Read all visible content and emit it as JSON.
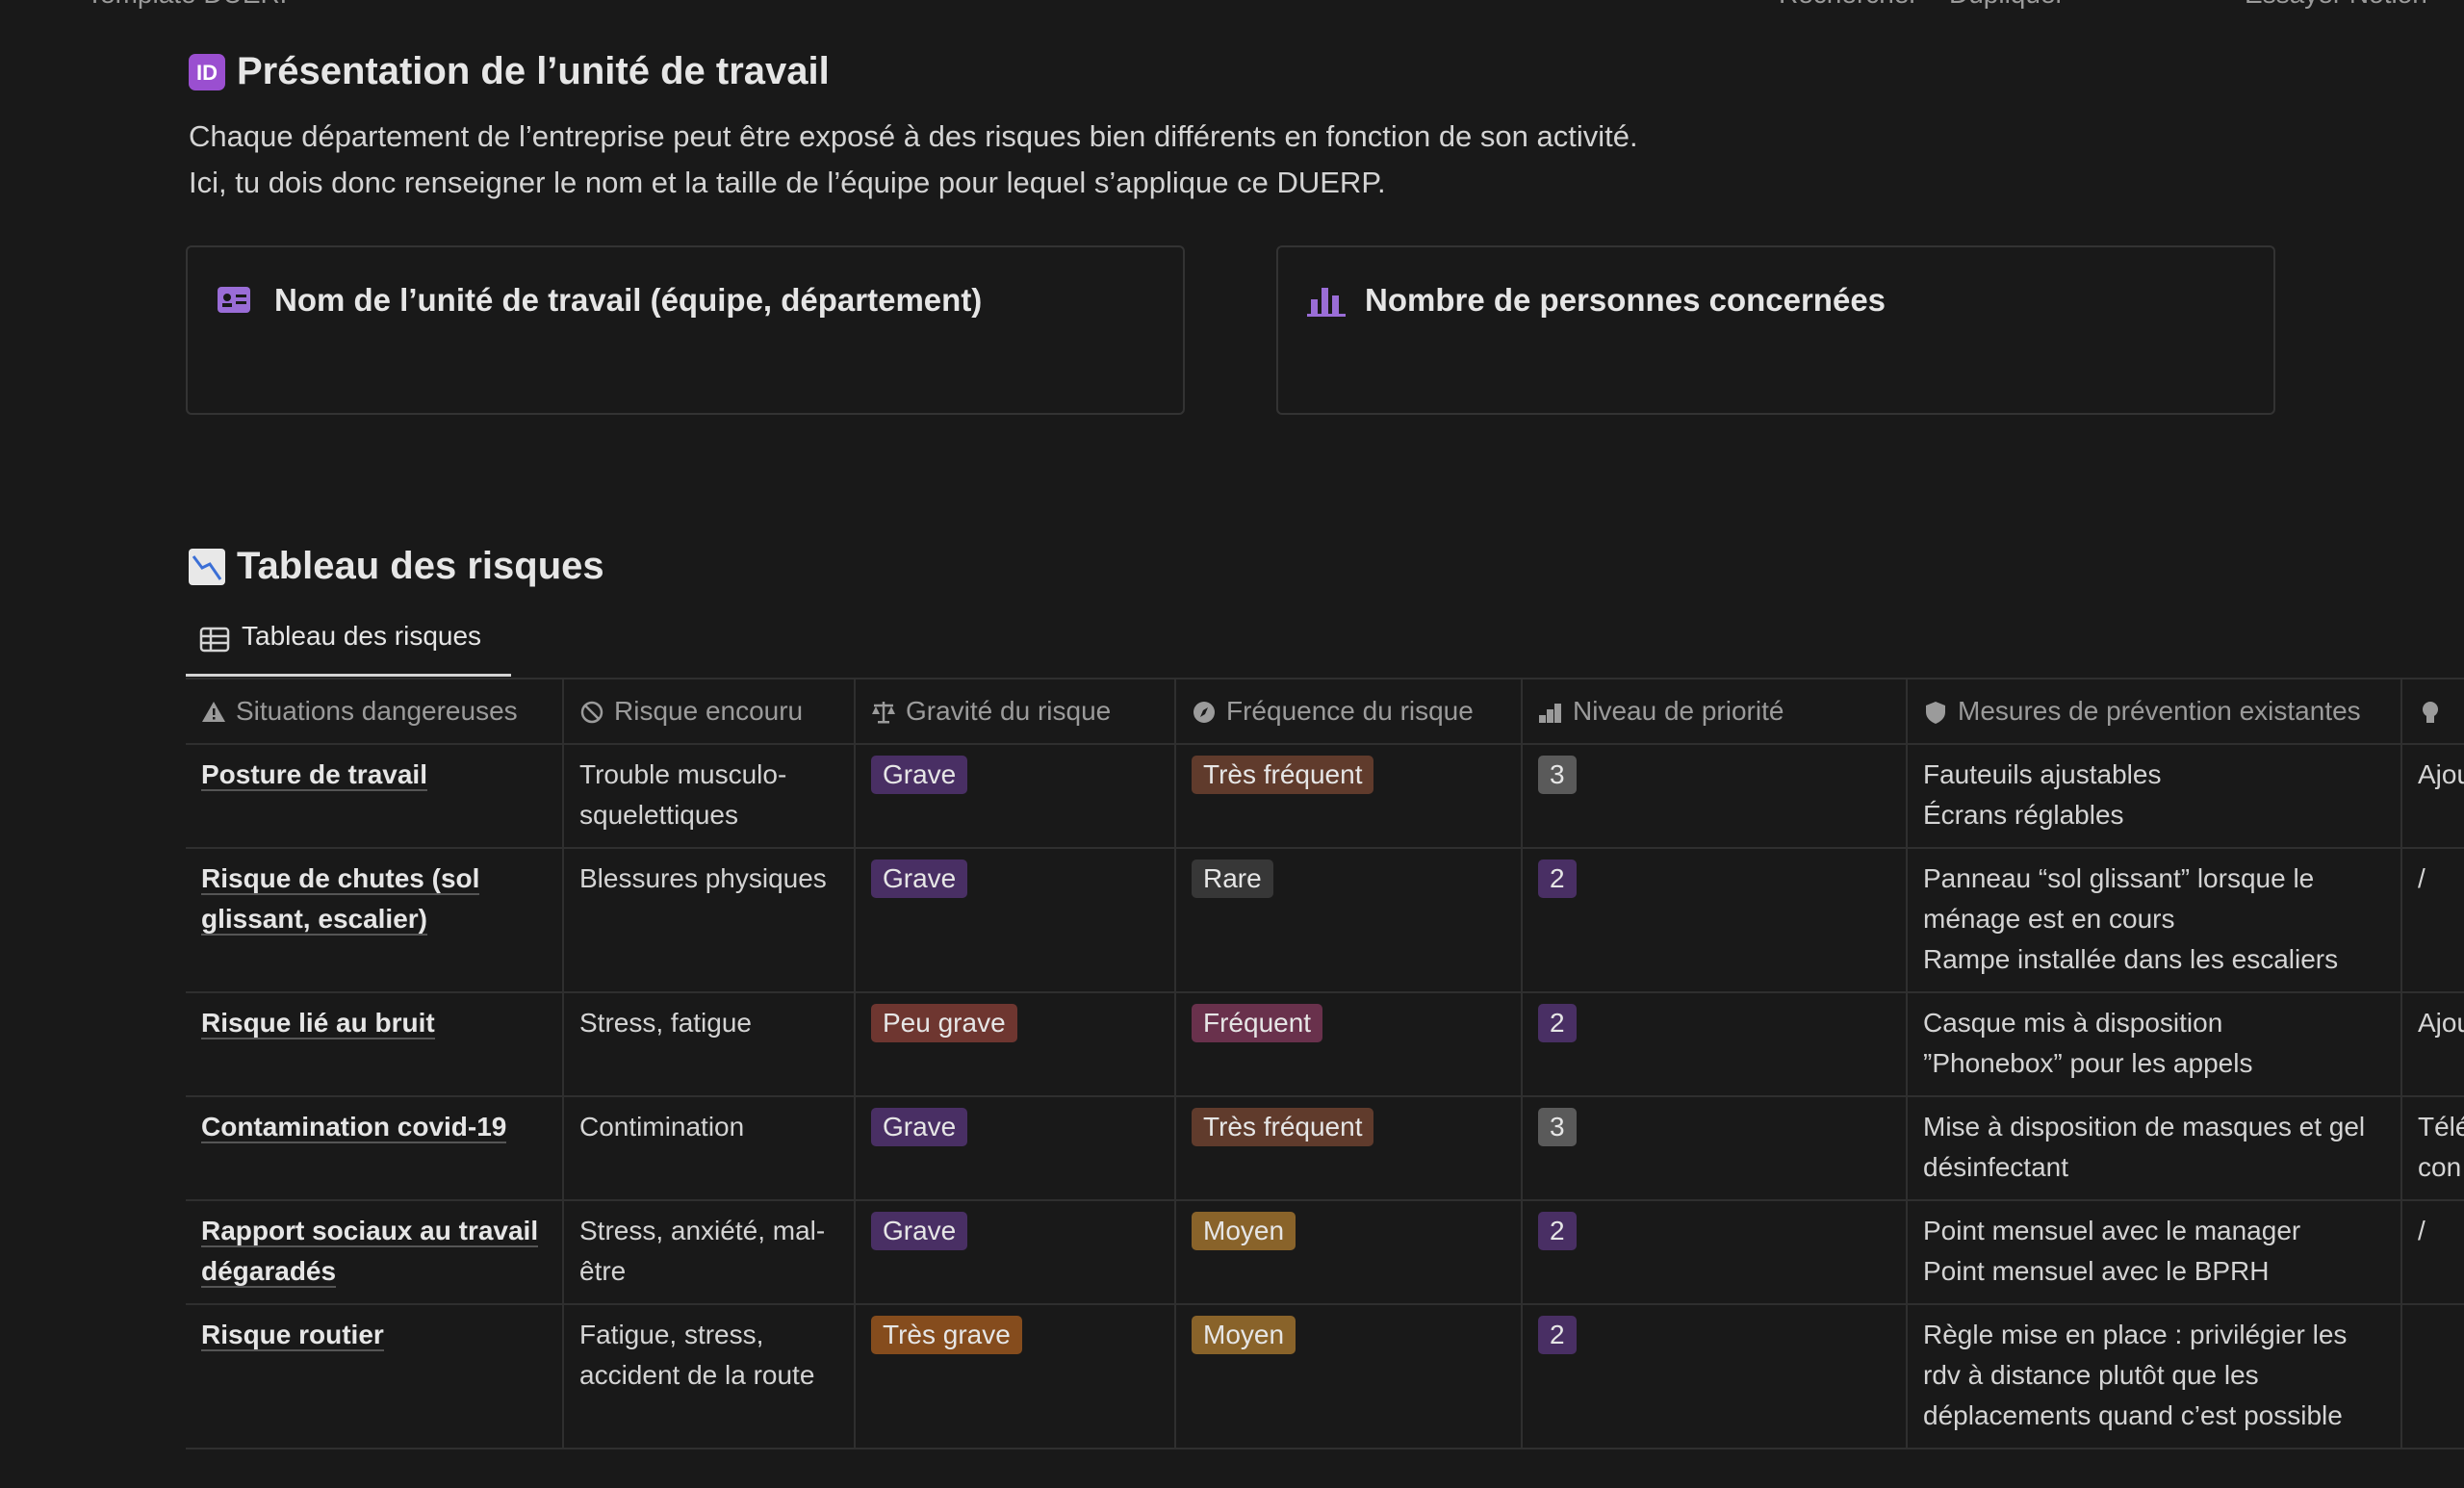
{
  "topbar": {
    "breadcrumb": "Template DUERP",
    "search": "Rechercher",
    "duplicate": "Dupliquer",
    "try": "Essayer Notion"
  },
  "section1": {
    "title": "Présentation de l’unité de travail",
    "lines": [
      "Chaque département de l’entreprise peut être exposé à des risques bien différents en fonction de son activité.",
      "Ici, tu dois donc renseigner le nom et la taille de l’équipe pour lequel s’applique ce DUERP."
    ],
    "cards": [
      "Nom de l’unité de travail (équipe, département)",
      "Nombre de personnes concernées"
    ]
  },
  "section2": {
    "title": "Tableau des risques",
    "tab": "Tableau des risques"
  },
  "table": {
    "headers": [
      "Situations dangereuses",
      "Risque encouru",
      "Gravité du risque",
      "Fréquence du risque",
      "Niveau de priorité",
      "Mesures de prévention existantes"
    ],
    "rows": [
      {
        "situation": "Posture de travail",
        "risque": "Trouble musculo-squelettiques",
        "gravite": {
          "label": "Grave",
          "color": "#492f64"
        },
        "frequence": {
          "label": "Très fréquent",
          "color": "#603b2c"
        },
        "priorite": {
          "label": 3,
          "color": "#5a5a5a"
        },
        "mesures": [
          "Fauteuils ajustables",
          "Écrans réglables"
        ],
        "suite": [
          "Ajou"
        ]
      },
      {
        "situation": "Risque de chutes (sol glissant, escalier)",
        "risque": "Blessures physiques",
        "gravite": {
          "label": "Grave",
          "color": "#492f64"
        },
        "frequence": {
          "label": "Rare",
          "color": "#373737"
        },
        "priorite": {
          "label": 2,
          "color": "#492f64"
        },
        "mesures": [
          "Panneau “sol glissant” lorsque le ménage est en cours",
          "Rampe installée dans les escaliers"
        ],
        "suite": [
          "/"
        ]
      },
      {
        "situation": "Risque lié au bruit",
        "risque": "Stress, fatigue",
        "gravite": {
          "label": "Peu grave",
          "color": "#6e3630"
        },
        "frequence": {
          "label": "Fréquent",
          "color": "#69314c"
        },
        "priorite": {
          "label": 2,
          "color": "#492f64"
        },
        "mesures": [
          "Casque mis à disposition",
          "”Phonebox” pour les appels"
        ],
        "suite": [
          "Ajou"
        ]
      },
      {
        "situation": "Contamination covid-19",
        "risque": "Contimination",
        "gravite": {
          "label": "Grave",
          "color": "#492f64"
        },
        "frequence": {
          "label": "Très fréquent",
          "color": "#603b2c"
        },
        "priorite": {
          "label": 3,
          "color": "#5a5a5a"
        },
        "mesures": [
          "Mise à disposition de masques et gel désinfectant"
        ],
        "suite": [
          "Télé",
          "con"
        ]
      },
      {
        "situation": "Rapport sociaux au travail dégaradés",
        "risque": "Stress, anxiété, mal-être",
        "gravite": {
          "label": "Grave",
          "color": "#492f64"
        },
        "frequence": {
          "label": "Moyen",
          "color": "#89632a"
        },
        "priorite": {
          "label": 2,
          "color": "#492f64"
        },
        "mesures": [
          "Point mensuel avec le manager",
          "Point mensuel avec le BPRH"
        ],
        "suite": [
          "/"
        ]
      },
      {
        "situation": "Risque routier",
        "risque": "Fatigue, stress, accident de la route",
        "gravite": {
          "label": "Très grave",
          "color": "#854c1d"
        },
        "frequence": {
          "label": "Moyen",
          "color": "#89632a"
        },
        "priorite": {
          "label": 2,
          "color": "#492f64"
        },
        "mesures": [
          "Règle mise en place : privilégier les rdv à distance plutôt que les déplacements quand c’est possible"
        ],
        "suite": []
      }
    ]
  }
}
